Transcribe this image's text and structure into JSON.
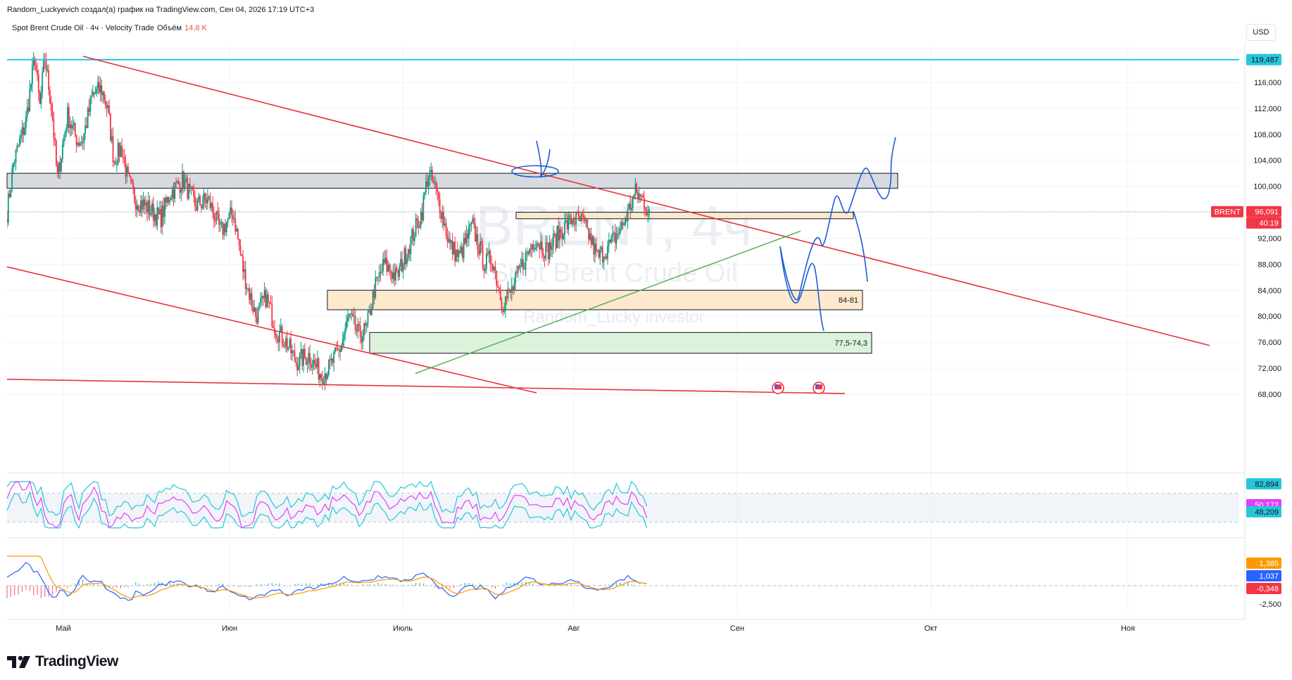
{
  "attribution": "Random_Luckyevich создал(а) график на TradingView.com, Сен 04, 2026 17:19 UTC+3",
  "legend": {
    "symbol": "Spot Brent Crude Oil · 4ч · Velocity Trade",
    "volume_label": "Объём",
    "volume_value": "14,8 K"
  },
  "currency_button": "USD",
  "brand": "TradingView",
  "watermark": {
    "symbol": "BRENT, 4ч",
    "name": "Spot Brent Crude Oil",
    "author": "Random_Lucky investor"
  },
  "colors": {
    "up": "#089981",
    "down": "#f23645",
    "trend": "#e5323b",
    "support": "#4caf50",
    "sketch": "#1e5bd6",
    "cyan": "#26c6da",
    "rsi": "#e040fb",
    "macd": "#2962ff",
    "signal": "#ff9800"
  },
  "chart_data": [
    {
      "type": "candlestick",
      "title": "Spot Brent Crude Oil · 4ч · Velocity Trade",
      "x_ticks": [
        "Май",
        "Июн",
        "Июль",
        "Авг",
        "Сен",
        "Окт",
        "Ноя"
      ],
      "y_ticks": [
        "120,000",
        "116,000",
        "112,000",
        "108,000",
        "104,000",
        "100,000",
        "96,000",
        "92,000",
        "88,000",
        "84,000",
        "80,000",
        "76,000",
        "72,000",
        "68,000"
      ],
      "ylim": [
        66,
        121
      ],
      "last_price": "96,091",
      "countdown": "40:19",
      "symbol_tag": "BRENT",
      "horizontal_level": "119,487",
      "zones": [
        {
          "label": "84-81",
          "from": 81,
          "to": 84
        },
        {
          "label": "77,5-74,3",
          "from": 74.3,
          "to": 77.5
        },
        {
          "label": "",
          "from": 99.7,
          "to": 102
        },
        {
          "label": "",
          "from": 95,
          "to": 96
        }
      ],
      "path": [
        [
          0,
          96
        ],
        [
          0.5,
          103.5
        ],
        [
          1.5,
          110
        ],
        [
          2.2,
          120
        ],
        [
          2.6,
          112
        ],
        [
          3,
          120
        ],
        [
          3.6,
          111
        ],
        [
          4,
          101
        ],
        [
          4.8,
          111
        ],
        [
          5.6,
          107
        ],
        [
          6,
          107
        ],
        [
          6.8,
          114
        ],
        [
          7.5,
          115
        ],
        [
          8,
          112
        ],
        [
          8.5,
          104
        ],
        [
          9.1,
          106
        ],
        [
          9.6,
          101
        ],
        [
          10.2,
          98
        ],
        [
          11,
          97
        ],
        [
          12.2,
          95
        ],
        [
          13,
          99
        ],
        [
          14,
          101
        ],
        [
          15,
          97
        ],
        [
          16,
          98
        ],
        [
          17,
          93
        ],
        [
          18,
          96
        ],
        [
          18.8,
          87
        ],
        [
          19.2,
          84
        ],
        [
          19.8,
          80
        ],
        [
          20.6,
          83
        ],
        [
          21.4,
          78
        ],
        [
          22.2,
          76
        ],
        [
          23,
          73
        ],
        [
          24,
          74
        ],
        [
          25,
          71
        ],
        [
          25.6,
          72
        ],
        [
          26.5,
          75
        ],
        [
          27.2,
          80
        ],
        [
          28,
          77
        ],
        [
          28.6,
          78
        ],
        [
          29.2,
          84
        ],
        [
          30,
          88
        ],
        [
          31,
          86
        ],
        [
          32,
          91
        ],
        [
          33,
          96
        ],
        [
          33.5,
          102
        ],
        [
          34,
          100
        ],
        [
          34.6,
          96
        ],
        [
          35.2,
          91
        ],
        [
          36,
          89
        ],
        [
          37,
          94
        ],
        [
          38,
          88
        ],
        [
          38.6,
          89
        ],
        [
          39.4,
          82
        ],
        [
          40.2,
          84
        ],
        [
          41,
          88
        ],
        [
          42,
          92
        ],
        [
          43,
          90
        ],
        [
          44,
          93
        ],
        [
          45,
          95
        ],
        [
          45.8,
          94.5
        ],
        [
          46.4,
          92
        ],
        [
          47,
          89
        ],
        [
          48,
          91
        ],
        [
          49,
          94
        ],
        [
          50,
          99
        ],
        [
          50.6,
          98
        ],
        [
          51.1,
          96
        ]
      ],
      "rsi": {
        "values": [
          "82,894",
          "50,172",
          "48,209"
        ],
        "ylim": [
          20,
          90
        ]
      },
      "macd": {
        "values": [
          "1,385",
          "1,037",
          "-0,348"
        ],
        "y_ticks": [
          "-2,500"
        ]
      }
    }
  ]
}
